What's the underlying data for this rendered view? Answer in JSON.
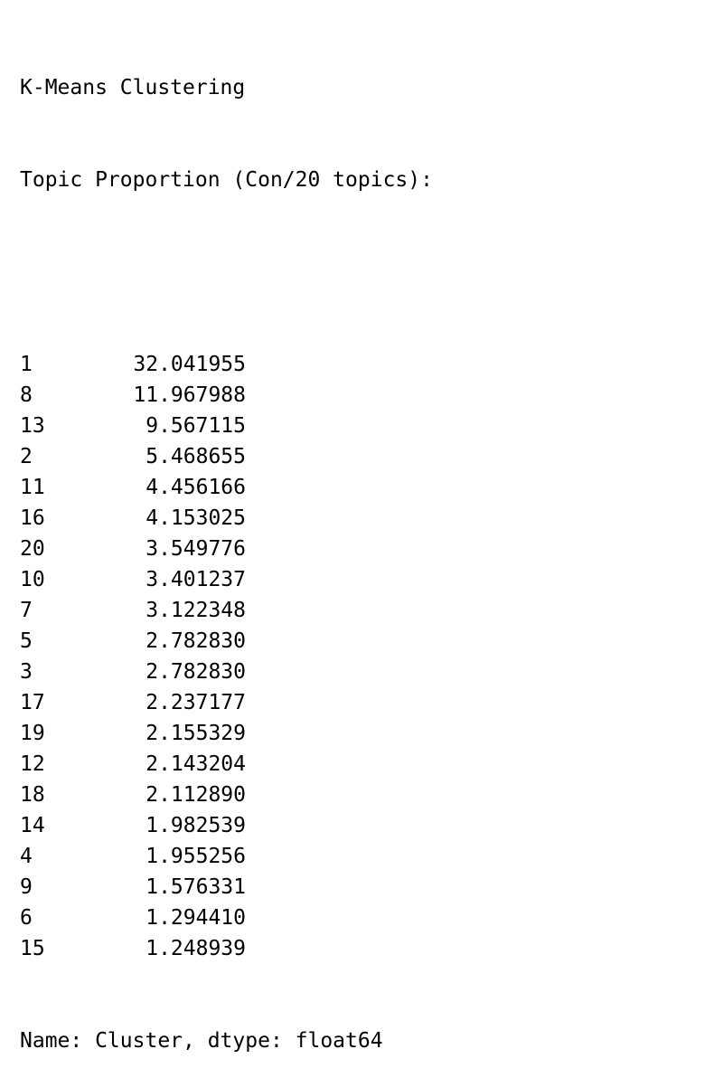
{
  "title": "K-Means Clustering",
  "subtitle": "Topic Proportion (Con/20 topics):",
  "rows": [
    {
      "index": "1",
      "value": "32.041955"
    },
    {
      "index": "8",
      "value": "11.967988"
    },
    {
      "index": "13",
      "value": "9.567115"
    },
    {
      "index": "2",
      "value": "5.468655"
    },
    {
      "index": "11",
      "value": "4.456166"
    },
    {
      "index": "16",
      "value": "4.153025"
    },
    {
      "index": "20",
      "value": "3.549776"
    },
    {
      "index": "10",
      "value": "3.401237"
    },
    {
      "index": "7",
      "value": "3.122348"
    },
    {
      "index": "5",
      "value": "2.782830"
    },
    {
      "index": "3",
      "value": "2.782830"
    },
    {
      "index": "17",
      "value": "2.237177"
    },
    {
      "index": "19",
      "value": "2.155329"
    },
    {
      "index": "12",
      "value": "2.143204"
    },
    {
      "index": "18",
      "value": "2.112890"
    },
    {
      "index": "14",
      "value": "1.982539"
    },
    {
      "index": "4",
      "value": "1.955256"
    },
    {
      "index": "9",
      "value": "1.576331"
    },
    {
      "index": "6",
      "value": "1.294410"
    },
    {
      "index": "15",
      "value": "1.248939"
    }
  ],
  "footer": "Name: Cluster, dtype: float64"
}
